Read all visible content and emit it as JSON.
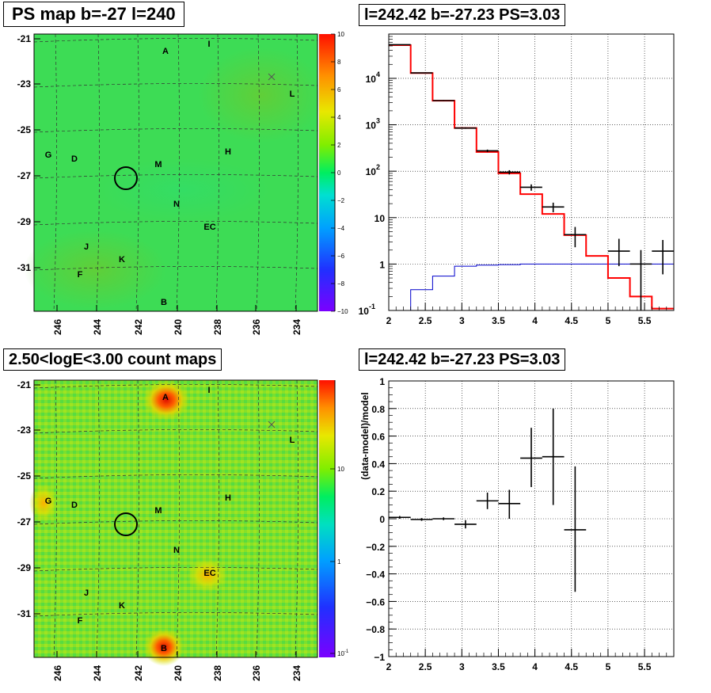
{
  "panels": {
    "tl_title": "PS map b=-27 l=240",
    "tr_title": "l=242.42 b=-27.23 PS=3.03",
    "bl_title": "2.50<logE<3.00 count maps",
    "br_title": "l=242.42 b=-27.23 PS=3.03"
  },
  "maps": {
    "x_ticks": [
      "246",
      "244",
      "242",
      "240",
      "238",
      "236",
      "234"
    ],
    "y_ticks": [
      "-21",
      "-23",
      "-25",
      "-27",
      "-29",
      "-31"
    ],
    "source_labels": [
      "A",
      "I",
      "L",
      "G",
      "D",
      "M",
      "H",
      "N",
      "EC",
      "J",
      "K",
      "F",
      "B"
    ],
    "markers": {
      "circle": "target position",
      "cross": "x"
    }
  },
  "colorbars": {
    "ps_ticks": [
      "10",
      "8",
      "6",
      "4",
      "2",
      "0",
      "−2",
      "−4",
      "−6",
      "−8",
      "−10"
    ],
    "count_ticks": [
      "10",
      "1",
      "10"
    ],
    "count_tick_exp": [
      "",
      "",
      "-1"
    ]
  },
  "chart_data": [
    {
      "type": "histogram",
      "panel": "top-right",
      "title": "l=242.42 b=-27.23 PS=3.03",
      "xlabel": "",
      "ylabel": "",
      "xlim": [
        2,
        5.9
      ],
      "ylim": [
        0.1,
        90000
      ],
      "yscale": "log",
      "x_ticks": [
        "2",
        "2.5",
        "3",
        "3.5",
        "4",
        "4.5",
        "5",
        "5.5"
      ],
      "y_tick_labels": [
        {
          "base": "10",
          "exp": "-1"
        },
        {
          "base": "1",
          "exp": ""
        },
        {
          "base": "10",
          "exp": ""
        },
        {
          "base": "10",
          "exp": "2"
        },
        {
          "base": "10",
          "exp": "3"
        },
        {
          "base": "10",
          "exp": "4"
        }
      ],
      "grid": true,
      "model_red": {
        "edges": [
          2.0,
          2.3,
          2.6,
          2.9,
          3.2,
          3.5,
          3.8,
          4.1,
          4.4,
          4.7,
          5.0,
          5.3,
          5.6,
          5.9
        ],
        "values": [
          52000,
          13000,
          3300,
          850,
          260,
          90,
          32,
          12,
          4.2,
          1.5,
          0.5,
          0.2,
          0.11
        ]
      },
      "model_blue": {
        "edges": [
          2.0,
          2.3,
          2.6,
          2.9,
          3.2,
          3.5,
          3.8,
          4.1,
          4.4,
          4.7,
          5.0,
          5.3,
          5.6,
          5.9
        ],
        "values": [
          0.1,
          0.28,
          0.55,
          0.9,
          0.95,
          0.97,
          1.0,
          1.0,
          1.0,
          1.0,
          1.0,
          1.0,
          1.0
        ]
      },
      "data_points": [
        {
          "x": 2.15,
          "y": 53000,
          "ylo": 52000,
          "yhi": 54000
        },
        {
          "x": 2.45,
          "y": 13100,
          "ylo": 12900,
          "yhi": 13300
        },
        {
          "x": 2.75,
          "y": 3320,
          "ylo": 3250,
          "yhi": 3400
        },
        {
          "x": 3.05,
          "y": 850,
          "ylo": 820,
          "yhi": 880
        },
        {
          "x": 3.35,
          "y": 275,
          "ylo": 258,
          "yhi": 292
        },
        {
          "x": 3.65,
          "y": 95,
          "ylo": 85,
          "yhi": 105
        },
        {
          "x": 3.95,
          "y": 45,
          "ylo": 38,
          "yhi": 52
        },
        {
          "x": 4.25,
          "y": 17,
          "ylo": 13,
          "yhi": 21
        },
        {
          "x": 4.55,
          "y": 4.3,
          "ylo": 2.3,
          "yhi": 6.3
        },
        {
          "x": 5.15,
          "y": 1.9,
          "ylo": 0.9,
          "yhi": 3.5
        },
        {
          "x": 5.45,
          "y": 1.0,
          "ylo": 0.1,
          "yhi": 2.0
        },
        {
          "x": 5.75,
          "y": 1.9,
          "ylo": 0.6,
          "yhi": 3.3
        }
      ]
    },
    {
      "type": "scatter",
      "panel": "bottom-right",
      "title": "l=242.42 b=-27.23 PS=3.03",
      "xlabel": "",
      "ylabel": "(data-model)/model",
      "xlim": [
        2,
        5.9
      ],
      "ylim": [
        -1,
        1
      ],
      "x_ticks": [
        "2",
        "2.5",
        "3",
        "3.5",
        "4",
        "4.5",
        "5",
        "5.5"
      ],
      "y_ticks": [
        "1",
        "0.8",
        "0.6",
        "0.4",
        "0.2",
        "0",
        "−0.2",
        "−0.4",
        "−0.6",
        "−0.8",
        "−1"
      ],
      "grid": true,
      "data_points": [
        {
          "x": 2.15,
          "y": 0.01,
          "ylo": 0.0,
          "yhi": 0.02
        },
        {
          "x": 2.45,
          "y": -0.005,
          "ylo": -0.015,
          "yhi": 0.005
        },
        {
          "x": 2.75,
          "y": 0.0,
          "ylo": -0.01,
          "yhi": 0.01
        },
        {
          "x": 3.05,
          "y": -0.04,
          "ylo": -0.07,
          "yhi": -0.01
        },
        {
          "x": 3.35,
          "y": 0.13,
          "ylo": 0.07,
          "yhi": 0.19
        },
        {
          "x": 3.65,
          "y": 0.11,
          "ylo": 0.0,
          "yhi": 0.21
        },
        {
          "x": 3.95,
          "y": 0.44,
          "ylo": 0.23,
          "yhi": 0.66
        },
        {
          "x": 4.25,
          "y": 0.45,
          "ylo": 0.1,
          "yhi": 0.8
        },
        {
          "x": 4.55,
          "y": -0.08,
          "ylo": -0.53,
          "yhi": 0.38
        }
      ]
    }
  ]
}
